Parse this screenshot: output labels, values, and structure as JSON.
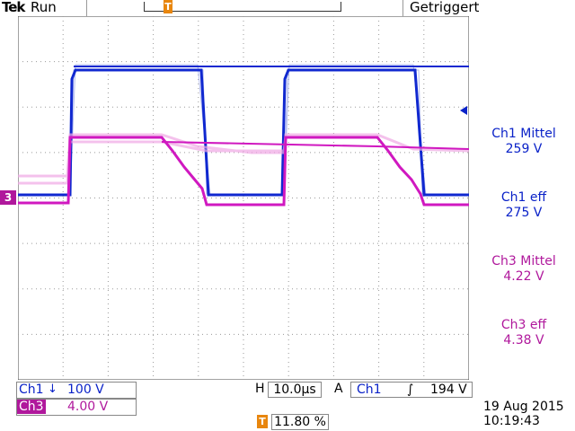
{
  "header": {
    "brand": "Tek",
    "run_state": "Run",
    "trigger_state": "Getriggert"
  },
  "measurements": [
    {
      "label": "Ch1 Mittel",
      "value": "259 V",
      "color": "#0a22c8"
    },
    {
      "label": "Ch1 eff",
      "value": "275 V",
      "color": "#0a22c8"
    },
    {
      "label": "Ch3 Mittel",
      "value": "4.22 V",
      "color": "#b0189c"
    },
    {
      "label": "Ch3 eff",
      "value": "4.38 V",
      "color": "#b0189c"
    }
  ],
  "channels": {
    "ch1": {
      "label": "Ch1",
      "scale": "100 V",
      "coupling_symbol": "↓",
      "color": "#0a22c8"
    },
    "ch3": {
      "label": "Ch3",
      "scale": "4.00 V",
      "color": "#b0189c",
      "marker": "3"
    }
  },
  "timebase": {
    "label": "H",
    "value": "10.0µs"
  },
  "trigger": {
    "label": "A",
    "source": "Ch1",
    "slope_symbol": "∫",
    "level": "194 V",
    "position": "11.80 %",
    "marker": "T"
  },
  "datetime": {
    "date": "19 Aug 2015",
    "time": "10:19:43"
  }
}
